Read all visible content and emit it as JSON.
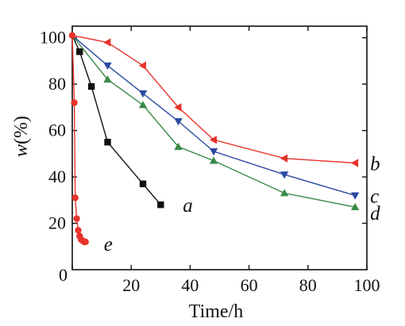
{
  "chart_data": {
    "type": "line",
    "title": "",
    "xlabel": "Time/h",
    "ylabel_symbol": "w",
    "ylabel_unit": "(%)",
    "xlim": [
      0,
      100
    ],
    "ylim": [
      0,
      105
    ],
    "x_ticks": [
      0,
      20,
      40,
      60,
      80,
      100
    ],
    "x_tick_labels": [
      "0",
      "20",
      "40",
      "60",
      "80",
      "100"
    ],
    "y_ticks": [
      20,
      40,
      60,
      80,
      100
    ],
    "y_tick_labels": [
      "20",
      "40",
      "60",
      "80",
      "100"
    ],
    "grid": false,
    "legend": "none (series labelled directly on the plot)",
    "series": [
      {
        "name": "a",
        "color": "#111111",
        "marker": "square",
        "x": [
          0,
          2.5,
          6.5,
          12,
          24,
          30
        ],
        "y": [
          101,
          94,
          79,
          55,
          37,
          28
        ]
      },
      {
        "name": "b",
        "color": "#e8332a",
        "marker": "triangle-left",
        "x": [
          0,
          12,
          24,
          36,
          48,
          72,
          96
        ],
        "y": [
          101,
          98,
          88,
          70,
          56,
          48,
          46
        ]
      },
      {
        "name": "c",
        "color": "#2a4aa0",
        "marker": "triangle-down",
        "x": [
          0,
          12,
          24,
          36,
          48,
          72,
          96
        ],
        "y": [
          101,
          88,
          76,
          64,
          51,
          41,
          32
        ]
      },
      {
        "name": "d",
        "color": "#3a8a48",
        "marker": "triangle-up",
        "x": [
          0,
          12,
          24,
          36,
          48,
          72,
          96
        ],
        "y": [
          101,
          82,
          71,
          53,
          47,
          33,
          27
        ]
      },
      {
        "name": "e",
        "color": "#e8332a",
        "marker": "circle",
        "x": [
          0,
          0.7,
          1.0,
          1.5,
          2.0,
          2.5,
          3.0,
          3.5,
          4.0,
          4.5
        ],
        "y": [
          101,
          72,
          31,
          22,
          17,
          14.5,
          13,
          12.5,
          12,
          12
        ]
      }
    ],
    "series_label_text": {
      "a": "a",
      "b": "b",
      "c": "c",
      "d": "d",
      "e": "e"
    }
  }
}
